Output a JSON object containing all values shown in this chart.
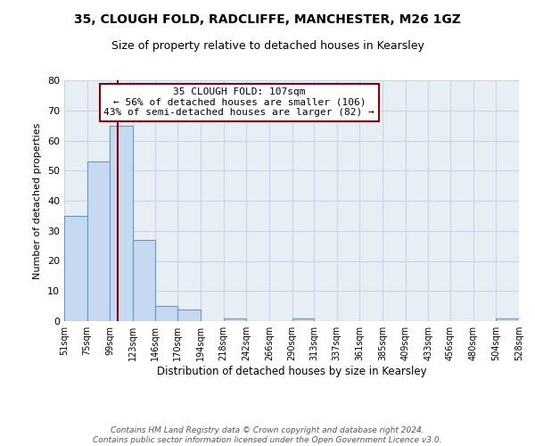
{
  "title1": "35, CLOUGH FOLD, RADCLIFFE, MANCHESTER, M26 1GZ",
  "title2": "Size of property relative to detached houses in Kearsley",
  "bar_edges": [
    51,
    75,
    99,
    123,
    146,
    170,
    194,
    218,
    242,
    266,
    290,
    313,
    337,
    361,
    385,
    409,
    433,
    456,
    480,
    504,
    528
  ],
  "bar_heights": [
    35,
    53,
    65,
    27,
    5,
    4,
    0,
    1,
    0,
    0,
    1,
    0,
    0,
    0,
    0,
    0,
    0,
    0,
    0,
    1,
    0
  ],
  "bar_color": "#c6d9f0",
  "bar_edge_color": "#5b9bd5",
  "property_value": 107,
  "vline_color": "#8b0000",
  "annotation_line1": "35 CLOUGH FOLD: 107sqm",
  "annotation_line2": "← 56% of detached houses are smaller (106)",
  "annotation_line3": "43% of semi-detached houses are larger (82) →",
  "annotation_box_edge": "#8b0000",
  "annotation_box_face": "#ffffff",
  "ylabel": "Number of detached properties",
  "xlabel": "Distribution of detached houses by size in Kearsley",
  "ylim": [
    0,
    80
  ],
  "yticks": [
    0,
    10,
    20,
    30,
    40,
    50,
    60,
    70,
    80
  ],
  "footer1": "Contains HM Land Registry data © Crown copyright and database right 2024.",
  "footer2": "Contains public sector information licensed under the Open Government Licence v3.0.",
  "bg_color": "#ffffff",
  "plot_bg_color": "#e8eef5",
  "grid_color": "#c8d4e8"
}
